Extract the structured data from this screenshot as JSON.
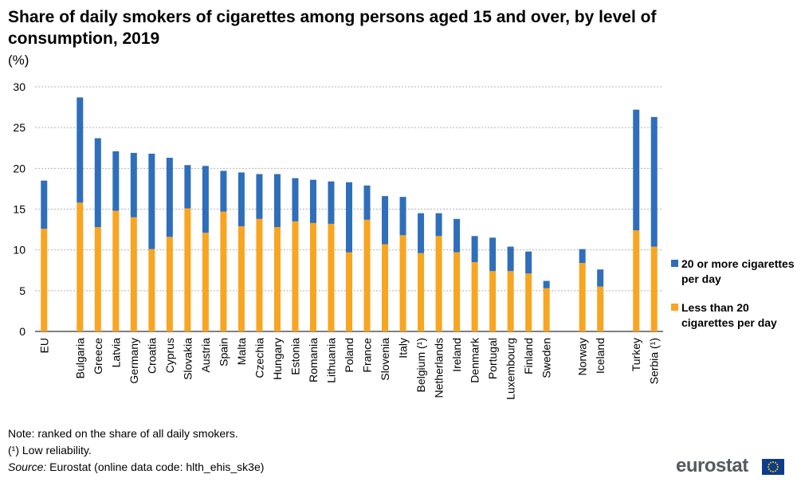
{
  "title": "Share of daily smokers of cigarettes among persons aged 15 and over, by level of consumption, 2019",
  "unit_label": "(%)",
  "legend": [
    {
      "label": "20 or more cigarettes per day",
      "color": "#2f6eba"
    },
    {
      "label": "Less than 20 cigarettes per day",
      "color": "#f8a521"
    }
  ],
  "notes": {
    "note": "Note: ranked on the share of all daily smokers.",
    "low_reliability": "(¹) Low reliability.",
    "source_label": "Source:",
    "source_text": " Eurostat (online data code: hlth_ehis_sk3e)"
  },
  "logo": {
    "text": "eurostat"
  },
  "chart_data": {
    "type": "bar",
    "stacked": true,
    "title": "Share of daily smokers of cigarettes among persons aged 15 and over, by level of consumption, 2019",
    "ylabel": "(%)",
    "xlabel": "",
    "ylim": [
      0,
      30
    ],
    "yticks": [
      0,
      5,
      10,
      15,
      20,
      25,
      30
    ],
    "grid": true,
    "legend_position": "right",
    "categories": [
      "EU",
      "",
      "Bulgaria",
      "Greece",
      "Latvia",
      "Germany",
      "Croatia",
      "Cyprus",
      "Slovakia",
      "Austria",
      "Spain",
      "Malta",
      "Czechia",
      "Hungary",
      "Estonia",
      "Romania",
      "Lithuania",
      "Poland",
      "France",
      "Slovenia",
      "Italy",
      "Belgium (¹)",
      "Netherlands",
      "Ireland",
      "Denmark",
      "Portugal",
      "Luxembourg",
      "Finland",
      "Sweden",
      "",
      "Norway",
      "Iceland",
      "",
      "Turkey",
      "Serbia (¹)"
    ],
    "series": [
      {
        "name": "Less than 20 cigarettes per day",
        "color": "#f8a521",
        "values": [
          12.6,
          null,
          15.8,
          12.8,
          14.8,
          14.0,
          10.1,
          11.6,
          15.1,
          12.1,
          14.7,
          12.9,
          13.8,
          12.8,
          13.5,
          13.3,
          13.2,
          9.7,
          13.7,
          10.7,
          11.8,
          9.6,
          11.7,
          9.7,
          8.5,
          7.4,
          7.4,
          7.1,
          5.3,
          null,
          8.4,
          5.5,
          null,
          12.4,
          10.4
        ]
      },
      {
        "name": "20 or more cigarettes per day",
        "color": "#2f6eba",
        "values": [
          5.9,
          null,
          12.9,
          10.9,
          7.3,
          7.9,
          11.7,
          9.7,
          5.3,
          8.2,
          5.0,
          6.6,
          5.5,
          6.5,
          5.3,
          5.3,
          5.2,
          8.6,
          4.2,
          5.9,
          4.7,
          4.9,
          2.8,
          4.1,
          3.2,
          4.1,
          3.0,
          2.7,
          0.9,
          null,
          1.7,
          2.1,
          null,
          14.8,
          15.9
        ]
      }
    ]
  }
}
